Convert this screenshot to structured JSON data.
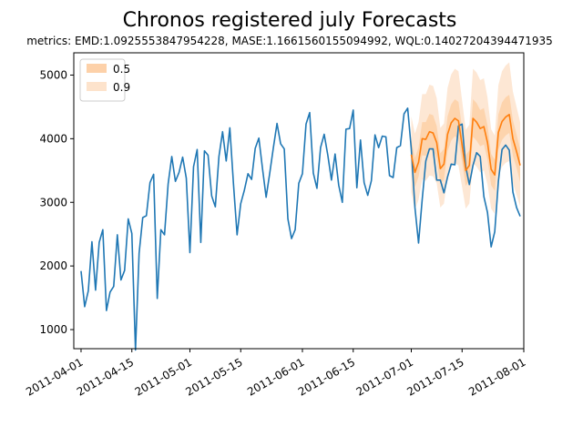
{
  "chart_data": {
    "type": "line",
    "title": "Chronos registered july Forecasts",
    "subtitle": "metrics: EMD:1.0925553847954228, MASE:1.1661560155094992, WQL:0.14027204394471935",
    "xlabel": "",
    "ylabel": "",
    "x_range": [
      "2011-03-30",
      "2011-08-01"
    ],
    "ylim": [
      700,
      5350
    ],
    "x_ticks": [
      "2011-04-01",
      "2011-04-15",
      "2011-05-01",
      "2011-05-15",
      "2011-06-01",
      "2011-06-15",
      "2011-07-01",
      "2011-07-15",
      "2011-08-01"
    ],
    "y_ticks": [
      1000,
      2000,
      3000,
      4000,
      5000
    ],
    "grid": false,
    "legend": {
      "placement": "top-left",
      "entries": [
        {
          "label": "0.5",
          "color": "#fdd1a9"
        },
        {
          "label": "0.9",
          "color": "#fde3cc"
        }
      ]
    },
    "colors": {
      "history": "#1f77b4",
      "median": "#ff7f0e",
      "band_50": "#fdd1a9",
      "band_90": "#fde3cc"
    },
    "history": {
      "start": "2011-04-01",
      "values": [
        1920,
        1360,
        1610,
        2380,
        1620,
        2370,
        2570,
        1300,
        1590,
        1680,
        2490,
        1780,
        1930,
        2740,
        2510,
        680,
        2200,
        2760,
        2790,
        3310,
        3440,
        1490,
        2570,
        2490,
        3290,
        3720,
        3330,
        3470,
        3710,
        3380,
        2210,
        3560,
        3830,
        2370,
        3810,
        3740,
        3100,
        2930,
        3720,
        4110,
        3650,
        4170,
        3290,
        2490,
        2980,
        3190,
        3450,
        3360,
        3850,
        4010,
        3530,
        3080,
        3460,
        3860,
        4240,
        3920,
        3840,
        2740,
        2430,
        2570,
        3300,
        3450,
        4230,
        4410,
        3460,
        3220,
        3860,
        4070,
        3740,
        3350,
        3760,
        3270,
        3000,
        4150,
        4160,
        4450,
        3230,
        3980,
        3310,
        3110,
        3340,
        4060,
        3860,
        4040,
        4030,
        3420,
        3390,
        3860,
        3890,
        4390,
        4480,
        3840,
        2920,
        2360,
        3040,
        3650,
        3840,
        3840,
        3350,
        3350,
        3150,
        3400,
        3600,
        3590,
        4200,
        4230,
        3560,
        3280,
        3580,
        3780,
        3720,
        3090,
        2840,
        2300,
        2540,
        3330,
        3830,
        3900,
        3820,
        3160,
        2920,
        2780
      ]
    },
    "forecast": {
      "start": "2011-07-01",
      "median": [
        3750,
        3470,
        3630,
        4000,
        3990,
        4110,
        4090,
        3940,
        3530,
        3600,
        4070,
        4250,
        4320,
        4280,
        3900,
        3500,
        3580,
        4320,
        4260,
        4160,
        4190,
        3940,
        3520,
        3430,
        4100,
        4270,
        4340,
        4380,
        4000,
        3800,
        3580
      ],
      "q05": [
        3160,
        2880,
        3040,
        3360,
        3340,
        3420,
        3410,
        3300,
        2920,
        2980,
        3400,
        3560,
        3620,
        3580,
        3240,
        2900,
        2980,
        3620,
        3560,
        3470,
        3500,
        3280,
        2900,
        2820,
        3420,
        3560,
        3620,
        3650,
        3300,
        3120,
        2940
      ],
      "q25": [
        3520,
        3240,
        3400,
        3740,
        3730,
        3840,
        3820,
        3690,
        3290,
        3360,
        3800,
        3970,
        4040,
        3990,
        3630,
        3260,
        3340,
        4030,
        3970,
        3880,
        3910,
        3670,
        3270,
        3180,
        3830,
        3980,
        4050,
        4090,
        3730,
        3540,
        3320
      ],
      "q75": [
        3980,
        3700,
        3860,
        4260,
        4260,
        4390,
        4370,
        4200,
        3770,
        3840,
        4350,
        4540,
        4620,
        4580,
        4170,
        3740,
        3820,
        4620,
        4560,
        4450,
        4480,
        4210,
        3760,
        3670,
        4380,
        4570,
        4650,
        4690,
        4290,
        4070,
        3840
      ],
      "q95": [
        4350,
        4080,
        4260,
        4700,
        4700,
        4850,
        4830,
        4640,
        4170,
        4240,
        4800,
        5010,
        5100,
        5060,
        4600,
        4140,
        4220,
        5100,
        5040,
        4920,
        4950,
        4650,
        4150,
        4050,
        4840,
        5060,
        5150,
        5200,
        4740,
        4500,
        4260
      ]
    }
  }
}
